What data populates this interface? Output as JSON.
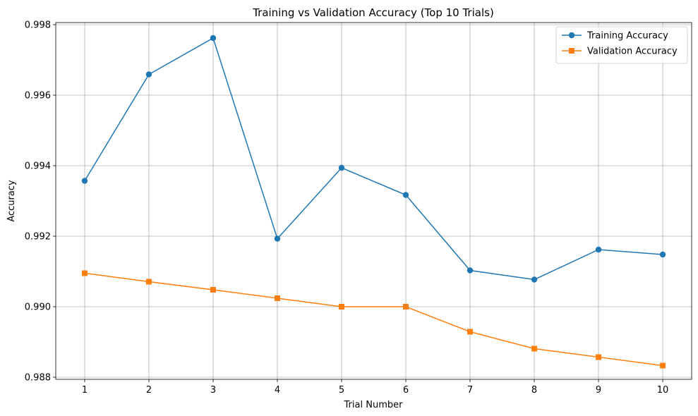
{
  "chart_data": {
    "type": "line",
    "title": "Training vs Validation Accuracy (Top 10 Trials)",
    "xlabel": "Trial Number",
    "ylabel": "Accuracy",
    "x": [
      1,
      2,
      3,
      4,
      5,
      6,
      7,
      8,
      9,
      10
    ],
    "xticks": [
      "1",
      "2",
      "3",
      "4",
      "5",
      "6",
      "7",
      "8",
      "9",
      "10"
    ],
    "yticks": [
      "0.988",
      "0.990",
      "0.992",
      "0.994",
      "0.996",
      "0.998"
    ],
    "ytick_values": [
      0.988,
      0.99,
      0.992,
      0.994,
      0.996,
      0.998
    ],
    "xlim": [
      0.55,
      10.45
    ],
    "ylim": [
      0.98794,
      0.99806
    ],
    "grid": true,
    "legend_position": "top-right",
    "series": [
      {
        "name": "Training Accuracy",
        "color": "#1f77b4",
        "marker": "circle",
        "values": [
          0.99357,
          0.99659,
          0.99762,
          0.99193,
          0.99394,
          0.99317,
          0.99103,
          0.99077,
          0.99162,
          0.99148
        ]
      },
      {
        "name": "Validation Accuracy",
        "color": "#ff7f0e",
        "marker": "square",
        "values": [
          0.99095,
          0.99071,
          0.99048,
          0.99024,
          0.99,
          0.99,
          0.98929,
          0.98881,
          0.98857,
          0.98833
        ]
      }
    ]
  }
}
